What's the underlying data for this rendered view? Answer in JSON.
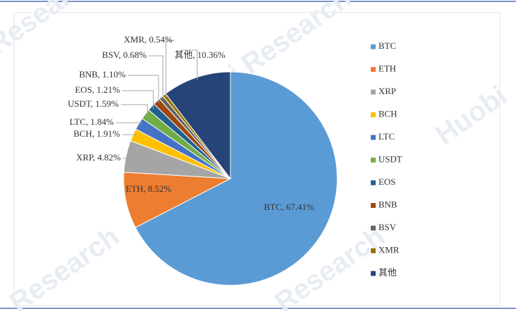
{
  "chart_data": {
    "type": "pie",
    "categories": [
      "BTC",
      "ETH",
      "XRP",
      "BCH",
      "LTC",
      "USDT",
      "EOS",
      "BNB",
      "BSV",
      "XMR",
      "其他"
    ],
    "values": [
      67.41,
      8.52,
      4.82,
      1.91,
      1.84,
      1.59,
      1.21,
      1.1,
      0.68,
      0.54,
      10.36
    ],
    "value_labels": [
      "BTC, 67.41%",
      "ETH, 8.52%",
      "XRP, 4.82%",
      "BCH, 1.91%",
      "LTC, 1.84%",
      "USDT, 1.59%",
      "EOS, 1.21%",
      "BNB, 1.10%",
      "BSV, 0.68%",
      "XMR, 0.54%",
      "其他, 10.36%"
    ],
    "colors": [
      "#5b9bd5",
      "#ed7d31",
      "#a5a5a5",
      "#ffc000",
      "#4472c4",
      "#70ad47",
      "#255e91",
      "#9e480e",
      "#636363",
      "#997300",
      "#264478"
    ],
    "legend": "right",
    "watermarks": [
      "Research",
      "Huobi Research",
      "Huobi",
      "Research",
      "Research"
    ]
  }
}
